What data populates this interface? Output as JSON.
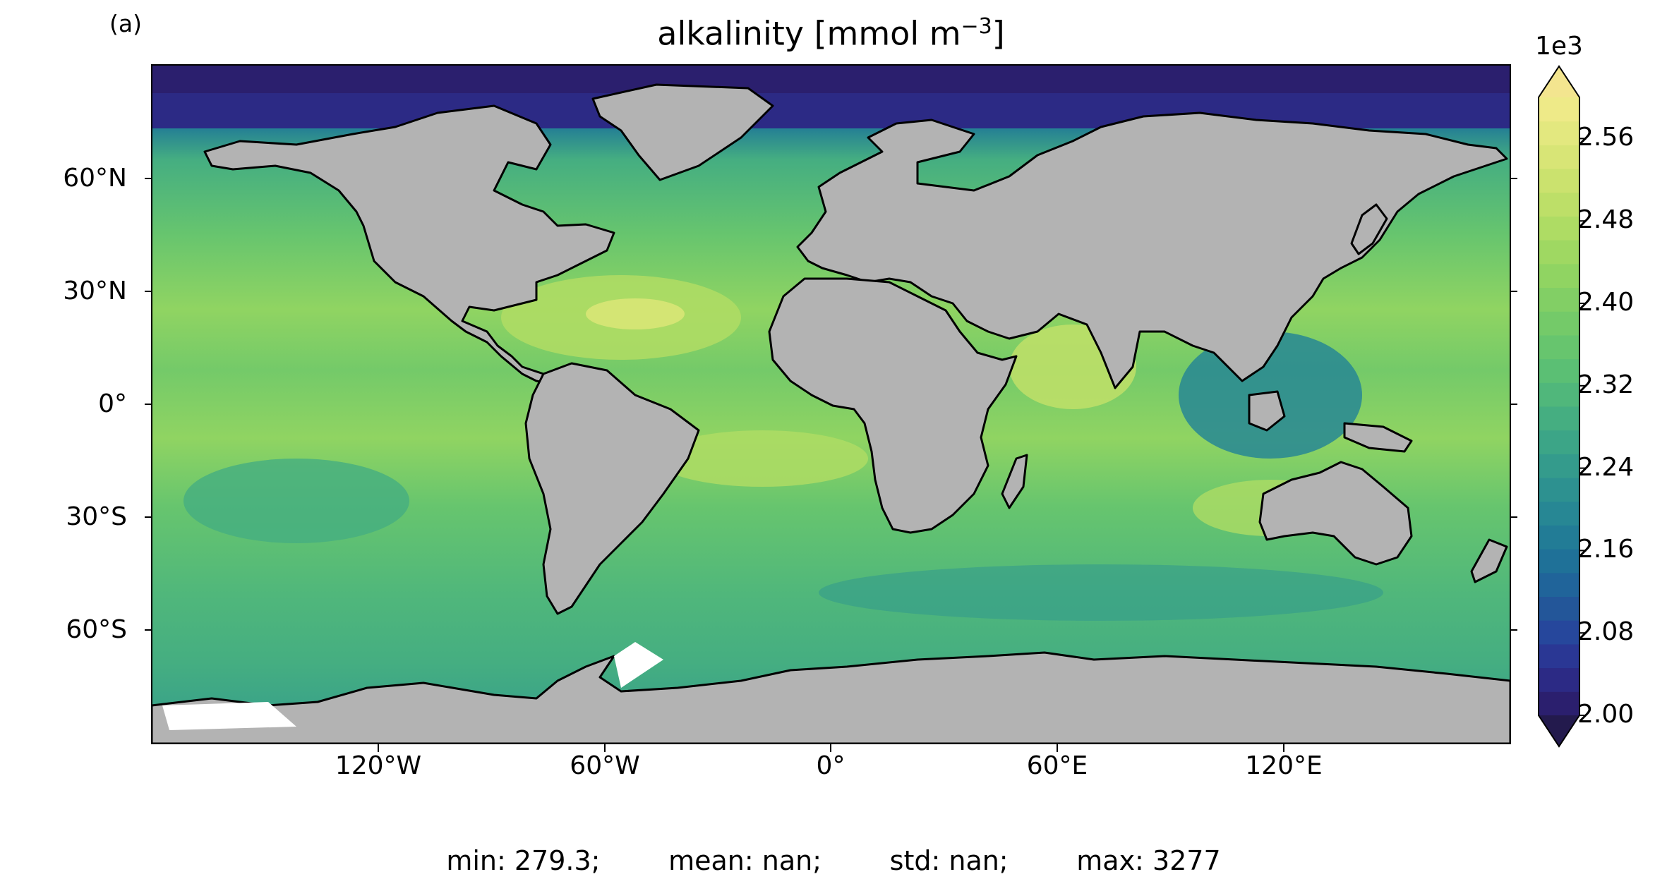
{
  "panel_label": "(a)",
  "title": {
    "text": "alkalinity [mmol m",
    "superscript": "−3",
    "closing": "]"
  },
  "latitude_ticks": [
    "60°N",
    "30°N",
    "0°",
    "30°S",
    "60°S"
  ],
  "longitude_ticks": [
    "120°W",
    "60°W",
    "0°",
    "60°E",
    "120°E"
  ],
  "colorbar": {
    "exponent_label": "1e3",
    "tick_labels": [
      "2.56",
      "2.48",
      "2.40",
      "2.32",
      "2.24",
      "2.16",
      "2.08",
      "2.00"
    ],
    "levels": [
      2.0,
      2.02,
      2.04,
      2.06,
      2.08,
      2.1,
      2.12,
      2.14,
      2.16,
      2.18,
      2.2,
      2.22,
      2.24,
      2.26,
      2.28,
      2.3,
      2.32,
      2.34,
      2.36,
      2.38,
      2.4,
      2.42,
      2.44,
      2.46,
      2.48,
      2.5,
      2.52,
      2.54,
      2.56,
      2.58,
      2.6
    ],
    "colors": [
      "#2b1f6e",
      "#2c2a85",
      "#2a3794",
      "#26479c",
      "#235699",
      "#20649a",
      "#1f7198",
      "#227c96",
      "#278794",
      "#2d9190",
      "#349b8c",
      "#3ca587",
      "#45ae81",
      "#50b77b",
      "#5bbf74",
      "#67c56e",
      "#74ca69",
      "#82cf65",
      "#90d462",
      "#9fd862",
      "#aedc64",
      "#bddf68",
      "#cbe26e",
      "#d8e576",
      "#e3e87f",
      "#eeea88"
    ],
    "extend_low_color": "#231a4d",
    "extend_high_color": "#f3e58f"
  },
  "stats": {
    "min": "min: 279.3;",
    "mean": "mean: nan;",
    "std": "std: nan;",
    "max": "max: 3277"
  },
  "colors": {
    "land": "#b3b3b3",
    "coastline": "#000000",
    "ice": "#ffffff",
    "ocean_typical": "#5bbf74",
    "polar_ocean": "#2c2a85"
  }
}
